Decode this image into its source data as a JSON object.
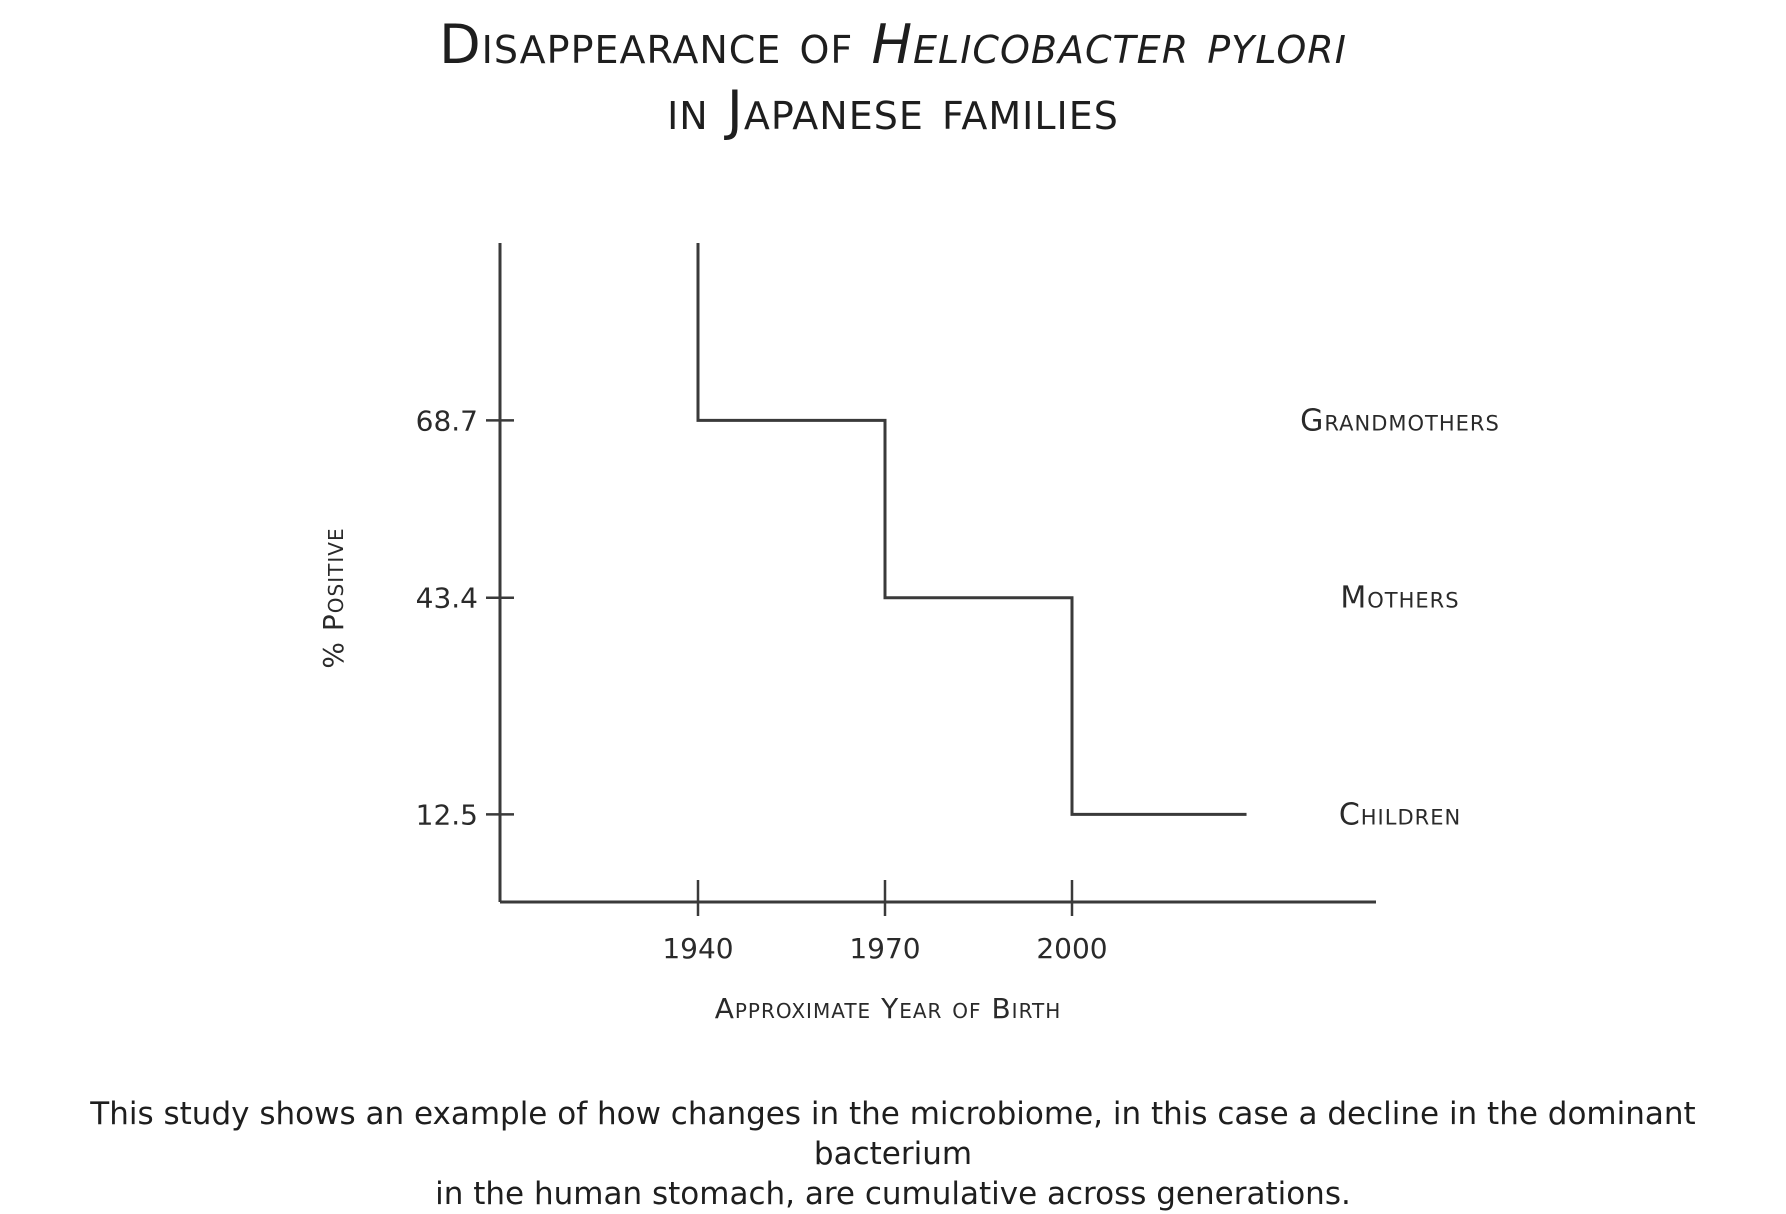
{
  "title": {
    "line1_prefix": "Disappearance of ",
    "line1_italic": "Helicobacter pylori",
    "line2": "in Japanese families"
  },
  "caption": {
    "line1": "This study shows an example of how changes in the microbiome, in this case a decline in the dominant bacterium",
    "line2": "in the human stomach, are cumulative across generations."
  },
  "colors": {
    "line": "#3a3a3a",
    "text": "#2a2a2a"
  },
  "chart_data": {
    "type": "line",
    "step": true,
    "title": "Disappearance of Helicobacter pylori in Japanese families",
    "xlabel": "Approximate Year of Birth",
    "ylabel": "% Positive",
    "x_ticks": [
      1940,
      1970,
      2000
    ],
    "x_tick_labels": [
      "1940",
      "1970",
      "2000"
    ],
    "y_ticks": [
      12.5,
      43.4,
      68.7
    ],
    "y_tick_labels": [
      "12.5",
      "43.4",
      "68.7"
    ],
    "xlim": [
      1910,
      2050
    ],
    "ylim": [
      0,
      94
    ],
    "grid": false,
    "series": [
      {
        "points": [
          {
            "x": 1940,
            "y": 94
          },
          {
            "x": 1940,
            "y": 68.7
          },
          {
            "x": 1970,
            "y": 68.7
          },
          {
            "x": 1970,
            "y": 43.4
          },
          {
            "x": 2000,
            "y": 43.4
          },
          {
            "x": 2000,
            "y": 12.5
          },
          {
            "x": 2028,
            "y": 12.5
          }
        ]
      }
    ],
    "annotations": [
      {
        "text": "Grandmothers",
        "y": 68.7
      },
      {
        "text": "Mothers",
        "y": 43.4
      },
      {
        "text": "Children",
        "y": 12.5
      }
    ]
  }
}
